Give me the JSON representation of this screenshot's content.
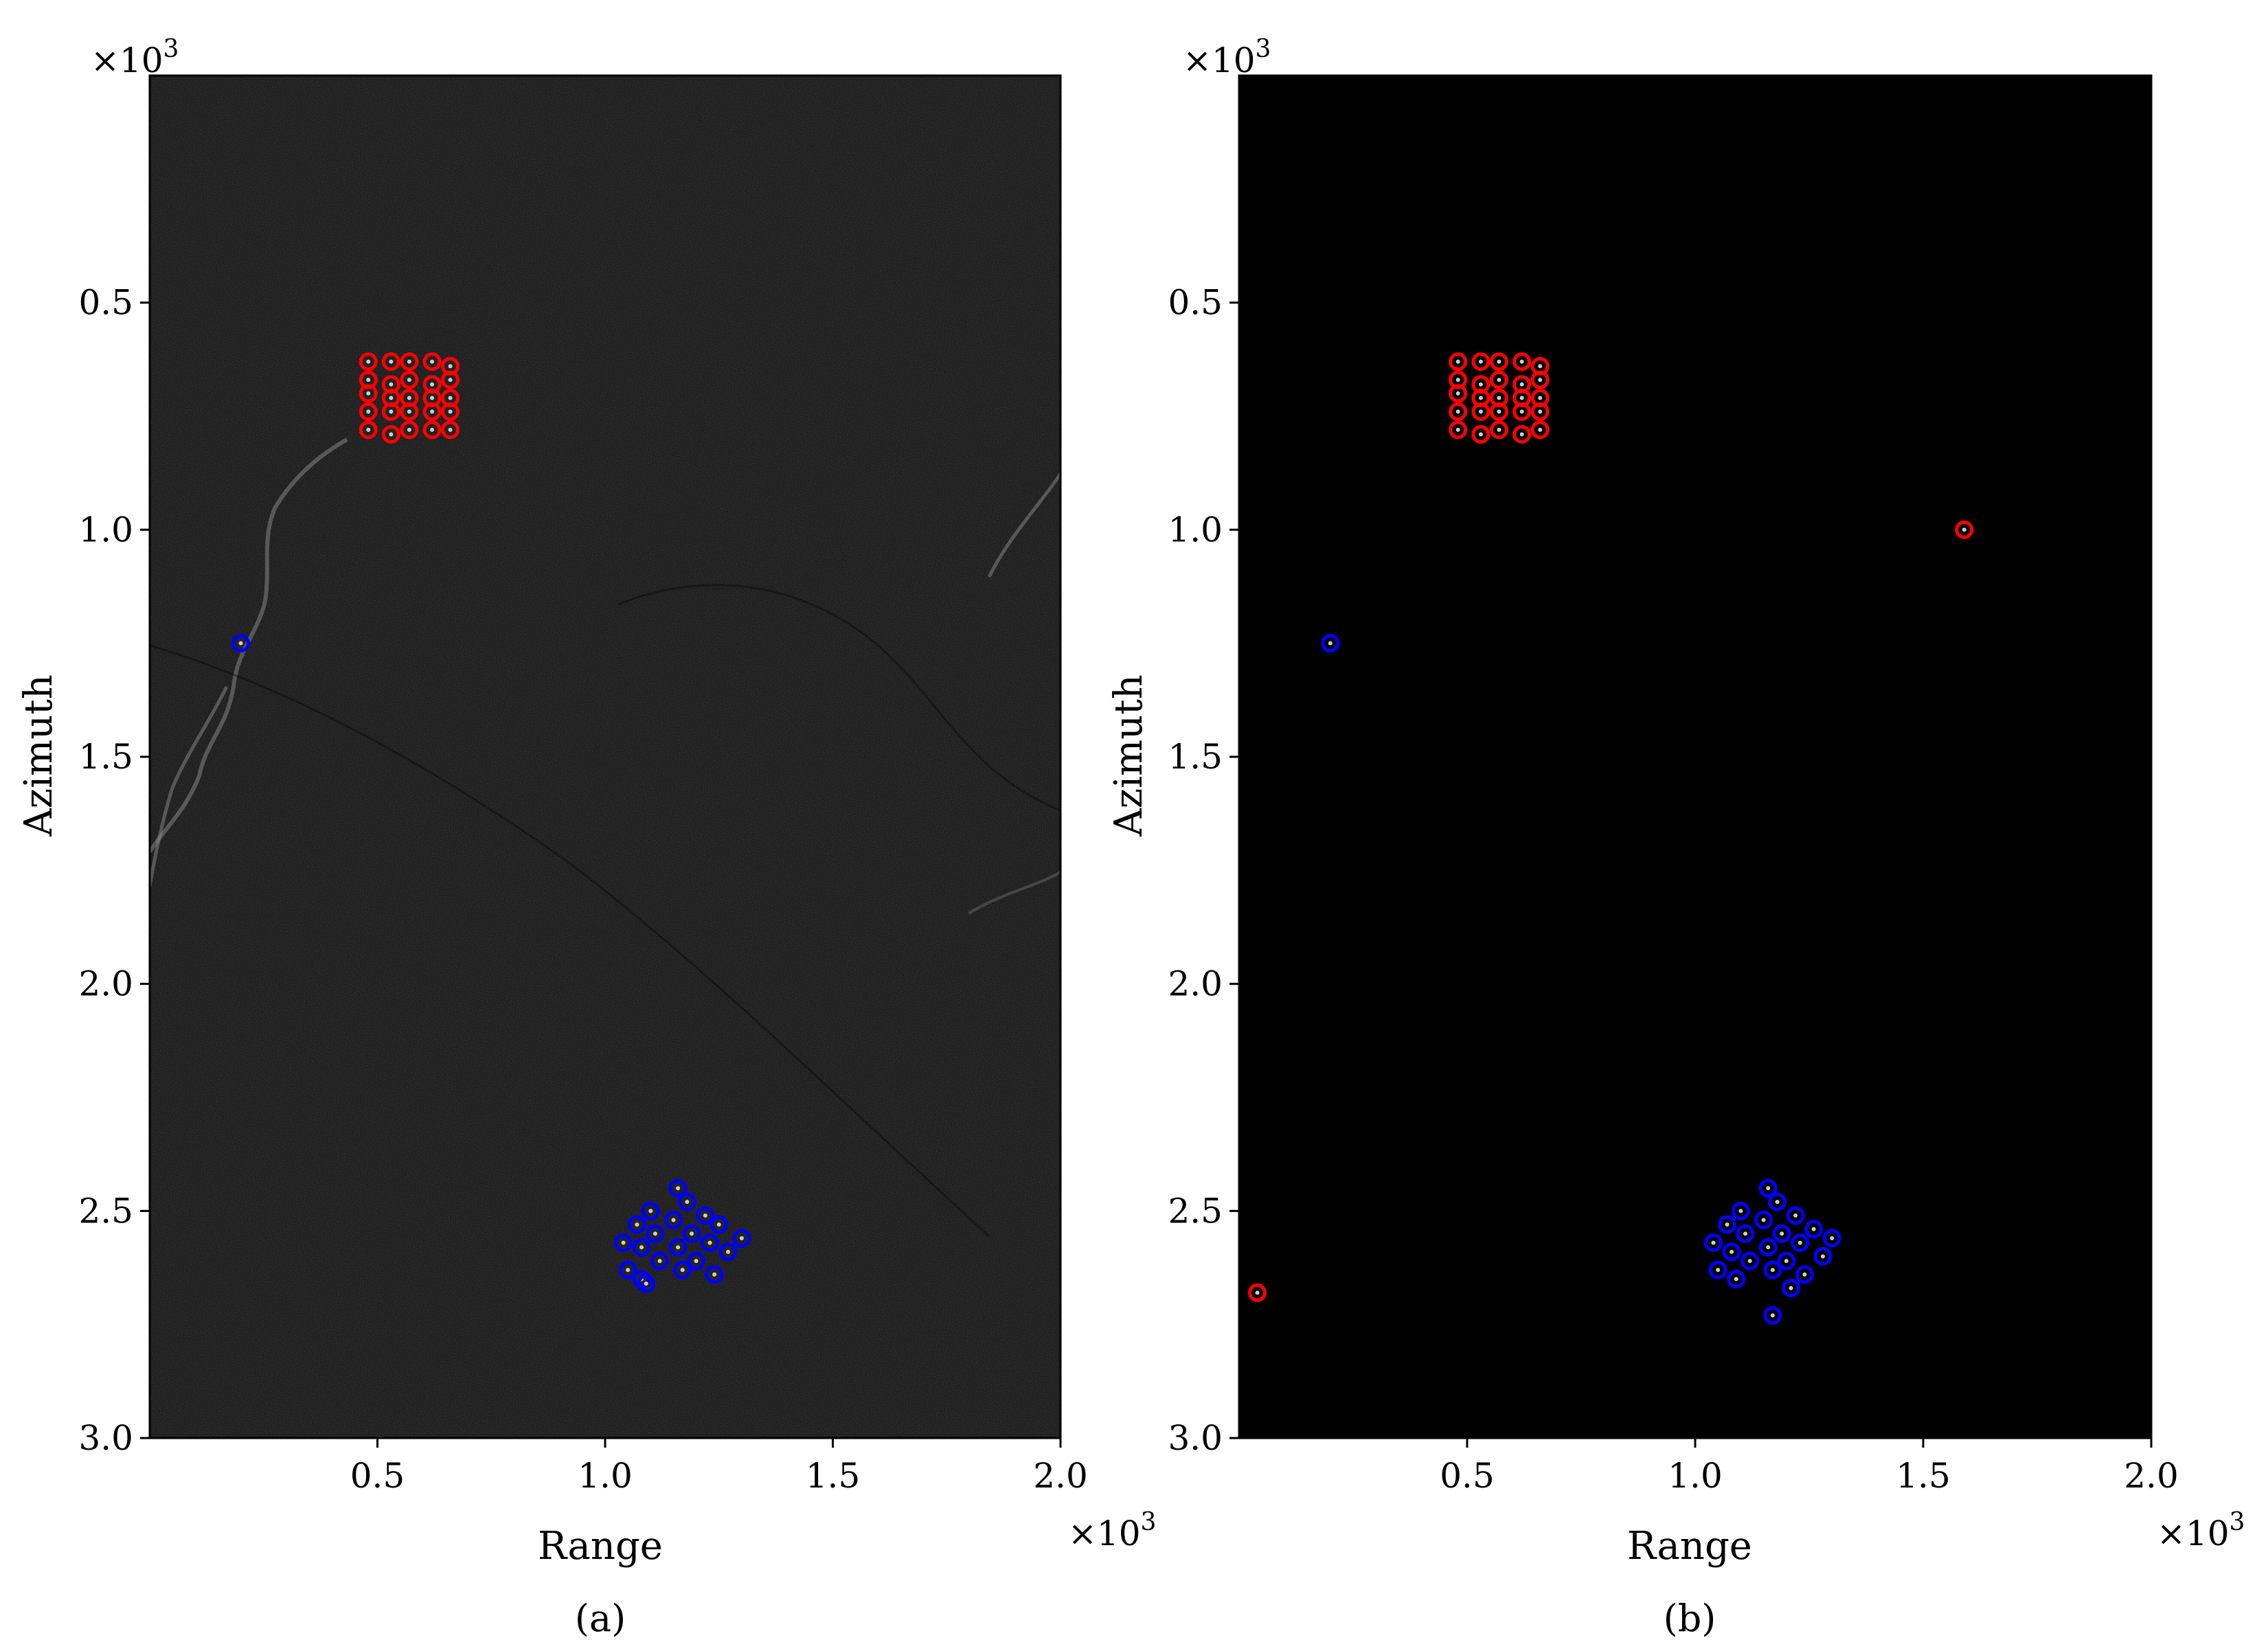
{
  "chart_data": [
    {
      "type": "scatter",
      "panel_label": "(a)",
      "background": "sar-image",
      "xlabel": "Range",
      "ylabel": "Azimuth",
      "x_multiplier": "×10",
      "x_multiplier_exp": "3",
      "y_multiplier": "×10",
      "y_multiplier_exp": "3",
      "xlim": [
        0,
        2.0
      ],
      "ylim": [
        0,
        3.0
      ],
      "y_inverted": true,
      "xticks": [
        0.5,
        1.0,
        1.5,
        2.0
      ],
      "xtick_labels": [
        "0.5",
        "1.0",
        "1.5",
        "2.0"
      ],
      "yticks": [
        0.5,
        1.0,
        1.5,
        2.0,
        2.5,
        3.0
      ],
      "ytick_labels": [
        "0.5",
        "1.0",
        "1.5",
        "2.0",
        "2.5",
        "3.0"
      ],
      "series": [
        {
          "color": "#ff0000",
          "points": [
            [
              0.48,
              0.63
            ],
            [
              0.53,
              0.63
            ],
            [
              0.57,
              0.63
            ],
            [
              0.62,
              0.63
            ],
            [
              0.66,
              0.64
            ],
            [
              0.48,
              0.67
            ],
            [
              0.53,
              0.68
            ],
            [
              0.57,
              0.67
            ],
            [
              0.62,
              0.68
            ],
            [
              0.66,
              0.67
            ],
            [
              0.48,
              0.7
            ],
            [
              0.53,
              0.71
            ],
            [
              0.57,
              0.71
            ],
            [
              0.62,
              0.71
            ],
            [
              0.66,
              0.71
            ],
            [
              0.48,
              0.74
            ],
            [
              0.53,
              0.74
            ],
            [
              0.57,
              0.74
            ],
            [
              0.62,
              0.74
            ],
            [
              0.66,
              0.74
            ],
            [
              0.48,
              0.78
            ],
            [
              0.53,
              0.79
            ],
            [
              0.57,
              0.78
            ],
            [
              0.62,
              0.78
            ],
            [
              0.66,
              0.78
            ]
          ]
        },
        {
          "color": "#0000ff",
          "points": [
            [
              0.2,
              1.25
            ],
            [
              1.16,
              2.45
            ],
            [
              1.18,
              2.48
            ],
            [
              1.1,
              2.5
            ],
            [
              1.22,
              2.51
            ],
            [
              1.15,
              2.52
            ],
            [
              1.07,
              2.53
            ],
            [
              1.25,
              2.53
            ],
            [
              1.11,
              2.55
            ],
            [
              1.19,
              2.55
            ],
            [
              1.3,
              2.56
            ],
            [
              1.04,
              2.57
            ],
            [
              1.23,
              2.57
            ],
            [
              1.08,
              2.58
            ],
            [
              1.16,
              2.58
            ],
            [
              1.27,
              2.59
            ],
            [
              1.12,
              2.61
            ],
            [
              1.2,
              2.61
            ],
            [
              1.05,
              2.63
            ],
            [
              1.24,
              2.64
            ],
            [
              1.08,
              2.65
            ],
            [
              1.17,
              2.63
            ],
            [
              1.09,
              2.66
            ]
          ]
        }
      ]
    },
    {
      "type": "scatter",
      "panel_label": "(b)",
      "background": "black",
      "xlabel": "Range",
      "ylabel": "Azimuth",
      "x_multiplier": "×10",
      "x_multiplier_exp": "3",
      "y_multiplier": "×10",
      "y_multiplier_exp": "3",
      "xlim": [
        0,
        2.0
      ],
      "ylim": [
        0,
        3.0
      ],
      "y_inverted": true,
      "xticks": [
        0.5,
        1.0,
        1.5,
        2.0
      ],
      "xtick_labels": [
        "0.5",
        "1.0",
        "1.5",
        "2.0"
      ],
      "yticks": [
        0.5,
        1.0,
        1.5,
        2.0,
        2.5,
        3.0
      ],
      "ytick_labels": [
        "0.5",
        "1.0",
        "1.5",
        "2.0",
        "2.5",
        "3.0"
      ],
      "series": [
        {
          "color": "#ff0000",
          "points": [
            [
              0.48,
              0.63
            ],
            [
              0.53,
              0.63
            ],
            [
              0.57,
              0.63
            ],
            [
              0.62,
              0.63
            ],
            [
              0.66,
              0.64
            ],
            [
              0.48,
              0.67
            ],
            [
              0.53,
              0.68
            ],
            [
              0.57,
              0.67
            ],
            [
              0.62,
              0.68
            ],
            [
              0.66,
              0.67
            ],
            [
              0.48,
              0.7
            ],
            [
              0.53,
              0.71
            ],
            [
              0.57,
              0.71
            ],
            [
              0.62,
              0.71
            ],
            [
              0.66,
              0.71
            ],
            [
              0.48,
              0.74
            ],
            [
              0.53,
              0.74
            ],
            [
              0.57,
              0.74
            ],
            [
              0.62,
              0.74
            ],
            [
              0.66,
              0.74
            ],
            [
              0.48,
              0.78
            ],
            [
              0.53,
              0.79
            ],
            [
              0.57,
              0.78
            ],
            [
              0.62,
              0.79
            ],
            [
              0.66,
              0.78
            ],
            [
              1.59,
              1.0
            ],
            [
              0.04,
              2.68
            ]
          ]
        },
        {
          "color": "#0000ff",
          "points": [
            [
              0.2,
              1.25
            ],
            [
              1.16,
              2.45
            ],
            [
              1.18,
              2.48
            ],
            [
              1.1,
              2.5
            ],
            [
              1.22,
              2.51
            ],
            [
              1.15,
              2.52
            ],
            [
              1.07,
              2.53
            ],
            [
              1.26,
              2.54
            ],
            [
              1.11,
              2.55
            ],
            [
              1.19,
              2.55
            ],
            [
              1.3,
              2.56
            ],
            [
              1.04,
              2.57
            ],
            [
              1.23,
              2.57
            ],
            [
              1.08,
              2.59
            ],
            [
              1.16,
              2.58
            ],
            [
              1.28,
              2.6
            ],
            [
              1.12,
              2.61
            ],
            [
              1.2,
              2.61
            ],
            [
              1.05,
              2.63
            ],
            [
              1.24,
              2.64
            ],
            [
              1.09,
              2.65
            ],
            [
              1.17,
              2.63
            ],
            [
              1.21,
              2.67
            ],
            [
              1.17,
              2.73
            ]
          ]
        }
      ]
    }
  ]
}
